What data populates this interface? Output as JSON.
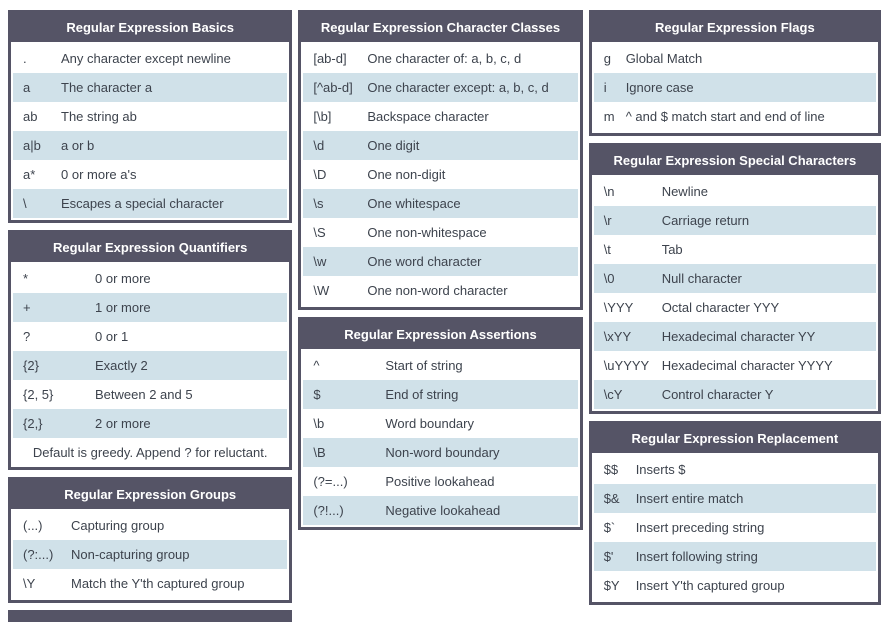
{
  "colors": {
    "header_bg": "#555466",
    "header_text": "#ffffff",
    "row_alt_bg": "#d0e1e9",
    "row_text": "#3d434d",
    "table_border": "#555466",
    "page_bg": "#ffffff"
  },
  "columns": [
    {
      "tables": [
        {
          "id": "basics",
          "title": "Regular Expression Basics",
          "rows": [
            {
              "code": ".",
              "desc": "Any character except newline"
            },
            {
              "code": "a",
              "desc": "The character a"
            },
            {
              "code": "ab",
              "desc": "The string ab"
            },
            {
              "code": "a|b",
              "desc": "a or b"
            },
            {
              "code": "a*",
              "desc": "0 or more a's"
            },
            {
              "code": "\\",
              "desc": "Escapes a special character"
            }
          ]
        },
        {
          "id": "quantifiers",
          "title": "Regular Expression Quantifiers",
          "rows": [
            {
              "code": "*",
              "desc": "0 or more"
            },
            {
              "code": "+",
              "desc": "1 or more"
            },
            {
              "code": "?",
              "desc": "0 or 1"
            },
            {
              "code": "{2}",
              "desc": "Exactly 2"
            },
            {
              "code": "{2, 5}",
              "desc": "Between 2 and 5"
            },
            {
              "code": "{2,}",
              "desc": "2 or more"
            }
          ],
          "footer": "Default is greedy. Append ? for reluctant."
        },
        {
          "id": "groups",
          "title": "Regular Expression Groups",
          "rows": [
            {
              "code": "(...)",
              "desc": "Capturing group"
            },
            {
              "code": "(?:...)",
              "desc": "Non-capturing group"
            },
            {
              "code": "\\Y",
              "desc": "Match the Y'th captured group"
            }
          ]
        }
      ]
    },
    {
      "tables": [
        {
          "id": "character-classes",
          "title": "Regular Expression Character Classes",
          "rows": [
            {
              "code": "[ab-d]",
              "desc": "One character of: a, b, c, d"
            },
            {
              "code": "[^ab-d]",
              "desc": "One character except: a, b, c, d"
            },
            {
              "code": "[\\b]",
              "desc": "Backspace character"
            },
            {
              "code": "\\d",
              "desc": "One digit"
            },
            {
              "code": "\\D",
              "desc": "One non-digit"
            },
            {
              "code": "\\s",
              "desc": "One whitespace"
            },
            {
              "code": "\\S",
              "desc": "One non-whitespace"
            },
            {
              "code": "\\w",
              "desc": "One word character"
            },
            {
              "code": "\\W",
              "desc": "One non-word character"
            }
          ]
        },
        {
          "id": "assertions",
          "title": "Regular Expression Assertions",
          "rows": [
            {
              "code": "^",
              "desc": "Start of string"
            },
            {
              "code": "$",
              "desc": "End of string"
            },
            {
              "code": "\\b",
              "desc": "Word boundary"
            },
            {
              "code": "\\B",
              "desc": "Non-word boundary"
            },
            {
              "code": "(?=...)",
              "desc": "Positive lookahead"
            },
            {
              "code": "(?!...)",
              "desc": "Negative lookahead"
            }
          ]
        }
      ]
    },
    {
      "tables": [
        {
          "id": "flags",
          "title": "Regular Expression Flags",
          "rows": [
            {
              "code": "g",
              "desc": "Global Match"
            },
            {
              "code": "i",
              "desc": "Ignore case"
            },
            {
              "code": "m",
              "desc": "^ and $ match start and end of line"
            }
          ]
        },
        {
          "id": "special-characters",
          "title": "Regular Expression Special Characters",
          "rows": [
            {
              "code": "\\n",
              "desc": "Newline"
            },
            {
              "code": "\\r",
              "desc": "Carriage return"
            },
            {
              "code": "\\t",
              "desc": "Tab"
            },
            {
              "code": "\\0",
              "desc": "Null character"
            },
            {
              "code": "\\YYY",
              "desc": "Octal character YYY"
            },
            {
              "code": "\\xYY",
              "desc": "Hexadecimal character YY"
            },
            {
              "code": "\\uYYYY",
              "desc": "Hexadecimal character YYYY"
            },
            {
              "code": "\\cY",
              "desc": "Control character Y"
            }
          ]
        },
        {
          "id": "replacement",
          "title": "Regular Expression Replacement",
          "rows": [
            {
              "code": "$$",
              "desc": "Inserts $"
            },
            {
              "code": "$&",
              "desc": "Insert entire match"
            },
            {
              "code": "$`",
              "desc": "Insert preceding string"
            },
            {
              "code": "$'",
              "desc": "Insert following string"
            },
            {
              "code": "$Y",
              "desc": "Insert Y'th captured group"
            }
          ]
        }
      ]
    }
  ]
}
